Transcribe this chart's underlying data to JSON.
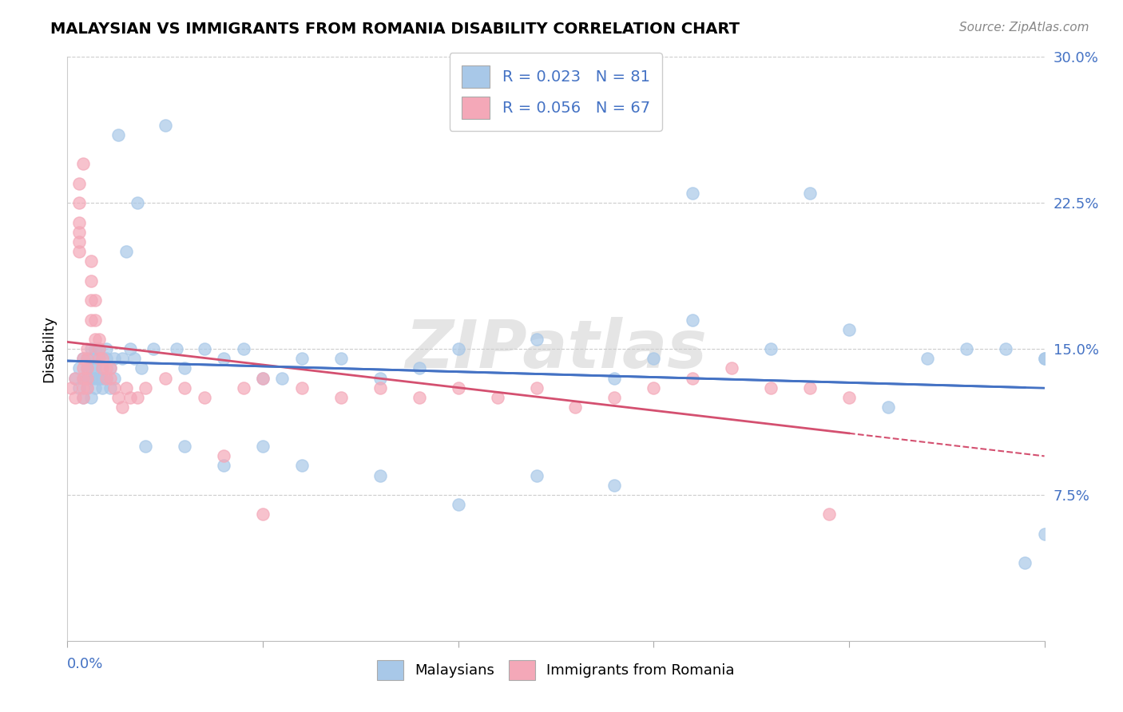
{
  "title": "MALAYSIAN VS IMMIGRANTS FROM ROMANIA DISABILITY CORRELATION CHART",
  "source": "Source: ZipAtlas.com",
  "ylabel": "Disability",
  "ylim": [
    0.0,
    0.3
  ],
  "xlim": [
    0.0,
    0.25
  ],
  "yticks": [
    0.075,
    0.15,
    0.225,
    0.3
  ],
  "ytick_labels": [
    "7.5%",
    "15.0%",
    "22.5%",
    "30.0%"
  ],
  "blue_color": "#a8c8e8",
  "pink_color": "#f4a8b8",
  "blue_line_color": "#4472c4",
  "pink_line_color": "#d45070",
  "legend_label1": "Malaysians",
  "legend_label2": "Immigrants from Romania",
  "watermark": "ZIPatlas",
  "blue_points_x": [
    0.002,
    0.003,
    0.003,
    0.004,
    0.004,
    0.004,
    0.005,
    0.005,
    0.005,
    0.005,
    0.006,
    0.006,
    0.006,
    0.006,
    0.006,
    0.007,
    0.007,
    0.007,
    0.007,
    0.008,
    0.008,
    0.008,
    0.009,
    0.009,
    0.009,
    0.009,
    0.01,
    0.01,
    0.01,
    0.011,
    0.011,
    0.012,
    0.012,
    0.013,
    0.014,
    0.015,
    0.016,
    0.017,
    0.018,
    0.019,
    0.022,
    0.025,
    0.028,
    0.03,
    0.035,
    0.04,
    0.045,
    0.05,
    0.055,
    0.06,
    0.07,
    0.08,
    0.09,
    0.1,
    0.12,
    0.14,
    0.15,
    0.16,
    0.18,
    0.2,
    0.21,
    0.22,
    0.23,
    0.24,
    0.245,
    0.16,
    0.19,
    0.25,
    0.25,
    0.25,
    0.06,
    0.08,
    0.1,
    0.12,
    0.14,
    0.02,
    0.03,
    0.04,
    0.05
  ],
  "blue_points_y": [
    0.135,
    0.14,
    0.13,
    0.135,
    0.145,
    0.125,
    0.14,
    0.145,
    0.13,
    0.135,
    0.15,
    0.14,
    0.135,
    0.125,
    0.145,
    0.14,
    0.135,
    0.13,
    0.15,
    0.145,
    0.135,
    0.15,
    0.14,
    0.13,
    0.145,
    0.135,
    0.15,
    0.145,
    0.135,
    0.14,
    0.13,
    0.135,
    0.145,
    0.26,
    0.145,
    0.2,
    0.15,
    0.145,
    0.225,
    0.14,
    0.15,
    0.265,
    0.15,
    0.14,
    0.15,
    0.145,
    0.15,
    0.135,
    0.135,
    0.145,
    0.145,
    0.135,
    0.14,
    0.15,
    0.155,
    0.135,
    0.145,
    0.165,
    0.15,
    0.16,
    0.12,
    0.145,
    0.15,
    0.15,
    0.04,
    0.23,
    0.23,
    0.145,
    0.055,
    0.145,
    0.09,
    0.085,
    0.07,
    0.085,
    0.08,
    0.1,
    0.1,
    0.09,
    0.1
  ],
  "pink_points_x": [
    0.001,
    0.002,
    0.002,
    0.003,
    0.003,
    0.003,
    0.003,
    0.004,
    0.004,
    0.004,
    0.004,
    0.004,
    0.005,
    0.005,
    0.005,
    0.005,
    0.005,
    0.006,
    0.006,
    0.006,
    0.006,
    0.007,
    0.007,
    0.007,
    0.008,
    0.008,
    0.008,
    0.009,
    0.009,
    0.01,
    0.01,
    0.011,
    0.011,
    0.012,
    0.013,
    0.014,
    0.015,
    0.016,
    0.018,
    0.02,
    0.025,
    0.03,
    0.035,
    0.04,
    0.045,
    0.05,
    0.06,
    0.07,
    0.08,
    0.09,
    0.1,
    0.11,
    0.12,
    0.13,
    0.14,
    0.15,
    0.16,
    0.17,
    0.18,
    0.19,
    0.195,
    0.2,
    0.003,
    0.003,
    0.004,
    0.05
  ],
  "pink_points_y": [
    0.13,
    0.135,
    0.125,
    0.21,
    0.2,
    0.205,
    0.215,
    0.145,
    0.135,
    0.14,
    0.125,
    0.13,
    0.145,
    0.14,
    0.135,
    0.15,
    0.13,
    0.195,
    0.185,
    0.175,
    0.165,
    0.155,
    0.165,
    0.175,
    0.15,
    0.155,
    0.145,
    0.145,
    0.14,
    0.135,
    0.14,
    0.135,
    0.14,
    0.13,
    0.125,
    0.12,
    0.13,
    0.125,
    0.125,
    0.13,
    0.135,
    0.13,
    0.125,
    0.095,
    0.13,
    0.065,
    0.13,
    0.125,
    0.13,
    0.125,
    0.13,
    0.125,
    0.13,
    0.12,
    0.125,
    0.13,
    0.135,
    0.14,
    0.13,
    0.13,
    0.065,
    0.125,
    0.235,
    0.225,
    0.245,
    0.135
  ]
}
